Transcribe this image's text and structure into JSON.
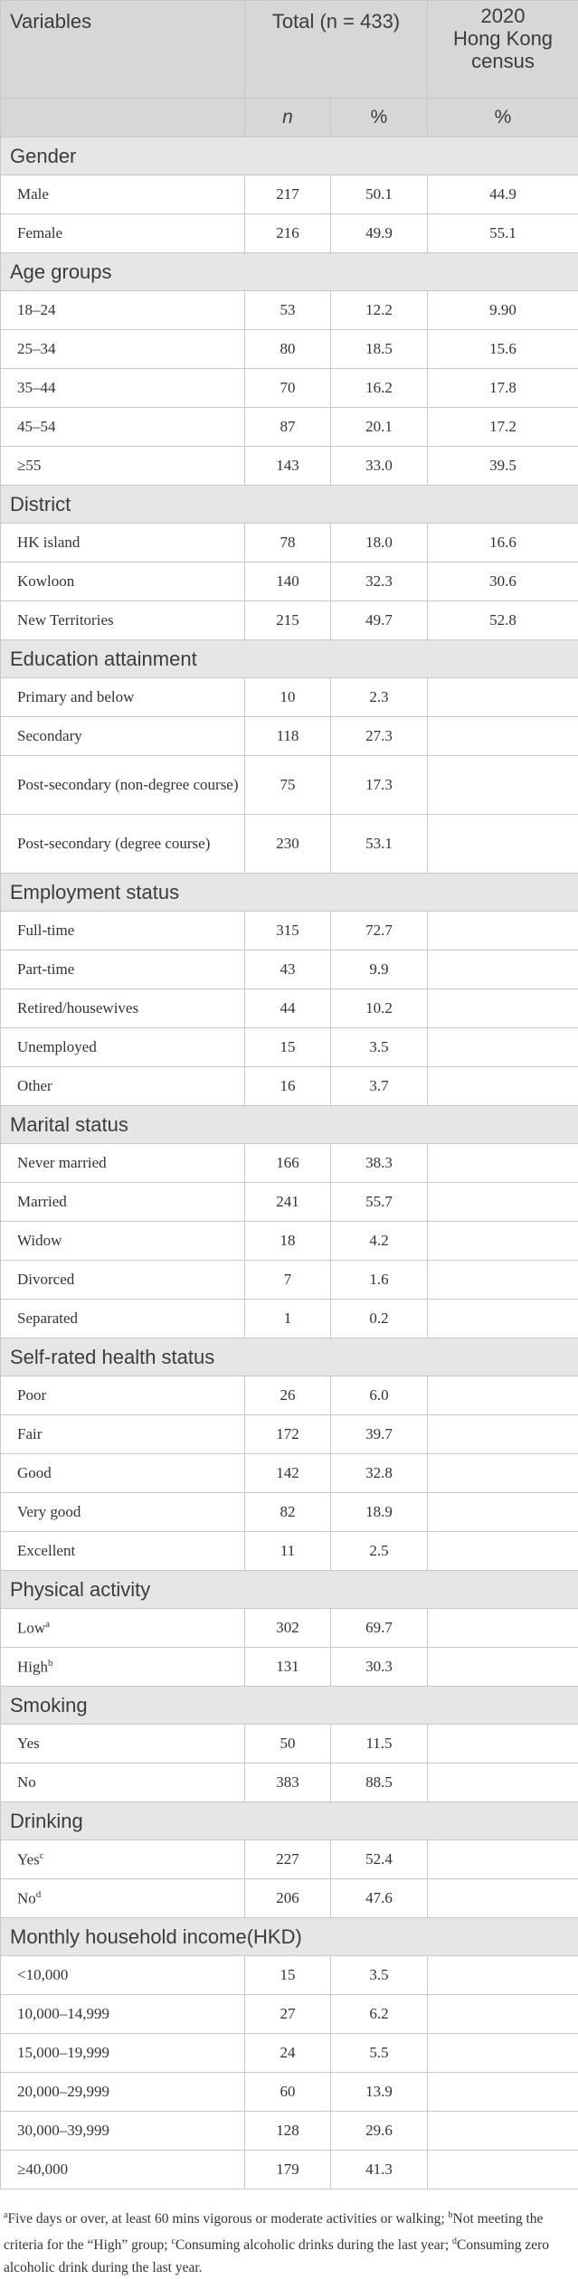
{
  "header": {
    "variables": "Variables",
    "total": "Total (n = 433)",
    "census_line1": "2020",
    "census_line2": "Hong Kong",
    "census_line3": "census",
    "n": "n",
    "pct": "%",
    "census_pct": "%"
  },
  "sections": [
    {
      "title": "Gender",
      "rows": [
        {
          "label": "Male",
          "n": "217",
          "pct": "50.1",
          "census": "44.9"
        },
        {
          "label": "Female",
          "n": "216",
          "pct": "49.9",
          "census": "55.1"
        }
      ]
    },
    {
      "title": "Age groups",
      "rows": [
        {
          "label": "18–24",
          "n": "53",
          "pct": "12.2",
          "census": "9.90"
        },
        {
          "label": "25–34",
          "n": "80",
          "pct": "18.5",
          "census": "15.6"
        },
        {
          "label": "35–44",
          "n": "70",
          "pct": "16.2",
          "census": "17.8"
        },
        {
          "label": "45–54",
          "n": "87",
          "pct": "20.1",
          "census": "17.2"
        },
        {
          "label": "≥55",
          "n": "143",
          "pct": "33.0",
          "census": "39.5"
        }
      ]
    },
    {
      "title": "District",
      "rows": [
        {
          "label": "HK island",
          "n": "78",
          "pct": "18.0",
          "census": "16.6"
        },
        {
          "label": "Kowloon",
          "n": "140",
          "pct": "32.3",
          "census": "30.6"
        },
        {
          "label": "New Territories",
          "n": "215",
          "pct": "49.7",
          "census": "52.8"
        }
      ]
    },
    {
      "title": "Education attainment",
      "rows": [
        {
          "label": "Primary and below",
          "n": "10",
          "pct": "2.3",
          "census": ""
        },
        {
          "label": "Secondary",
          "n": "118",
          "pct": "27.3",
          "census": ""
        },
        {
          "label": "Post-secondary (non-degree course)",
          "n": "75",
          "pct": "17.3",
          "census": "",
          "tall": true
        },
        {
          "label": "Post-secondary (degree course)",
          "n": "230",
          "pct": "53.1",
          "census": "",
          "tall": true
        }
      ]
    },
    {
      "title": "Employment status",
      "rows": [
        {
          "label": "Full-time",
          "n": "315",
          "pct": "72.7",
          "census": ""
        },
        {
          "label": "Part-time",
          "n": "43",
          "pct": "9.9",
          "census": ""
        },
        {
          "label": "Retired/housewives",
          "n": "44",
          "pct": "10.2",
          "census": ""
        },
        {
          "label": "Unemployed",
          "n": "15",
          "pct": "3.5",
          "census": ""
        },
        {
          "label": "Other",
          "n": "16",
          "pct": "3.7",
          "census": ""
        }
      ]
    },
    {
      "title": "Marital status",
      "rows": [
        {
          "label": "Never married",
          "n": "166",
          "pct": "38.3",
          "census": ""
        },
        {
          "label": "Married",
          "n": "241",
          "pct": "55.7",
          "census": ""
        },
        {
          "label": "Widow",
          "n": "18",
          "pct": "4.2",
          "census": ""
        },
        {
          "label": "Divorced",
          "n": "7",
          "pct": "1.6",
          "census": ""
        },
        {
          "label": "Separated",
          "n": "1",
          "pct": "0.2",
          "census": ""
        }
      ]
    },
    {
      "title": "Self-rated health status",
      "rows": [
        {
          "label": "Poor",
          "n": "26",
          "pct": "6.0",
          "census": ""
        },
        {
          "label": "Fair",
          "n": "172",
          "pct": "39.7",
          "census": ""
        },
        {
          "label": "Good",
          "n": "142",
          "pct": "32.8",
          "census": ""
        },
        {
          "label": "Very good",
          "n": "82",
          "pct": "18.9",
          "census": ""
        },
        {
          "label": "Excellent",
          "n": "11",
          "pct": "2.5",
          "census": ""
        }
      ]
    },
    {
      "title": "Physical activity",
      "rows": [
        {
          "label": "Low",
          "sup": "a",
          "n": "302",
          "pct": "69.7",
          "census": ""
        },
        {
          "label": "High",
          "sup": "b",
          "n": "131",
          "pct": "30.3",
          "census": ""
        }
      ]
    },
    {
      "title": "Smoking",
      "rows": [
        {
          "label": "Yes",
          "n": "50",
          "pct": "11.5",
          "census": ""
        },
        {
          "label": "No",
          "n": "383",
          "pct": "88.5",
          "census": ""
        }
      ]
    },
    {
      "title": "Drinking",
      "rows": [
        {
          "label": "Yes",
          "sup": "c",
          "n": "227",
          "pct": "52.4",
          "census": ""
        },
        {
          "label": "No",
          "sup": "d",
          "n": "206",
          "pct": "47.6",
          "census": ""
        }
      ]
    },
    {
      "title": "Monthly household income(HKD)",
      "rows": [
        {
          "label": "<10,000",
          "n": "15",
          "pct": "3.5",
          "census": ""
        },
        {
          "label": "10,000–14,999",
          "n": "27",
          "pct": "6.2",
          "census": ""
        },
        {
          "label": "15,000–19,999",
          "n": "24",
          "pct": "5.5",
          "census": ""
        },
        {
          "label": "20,000–29,999",
          "n": "60",
          "pct": "13.9",
          "census": ""
        },
        {
          "label": "30,000–39,999",
          "n": "128",
          "pct": "29.6",
          "census": ""
        },
        {
          "label": "≥40,000",
          "n": "179",
          "pct": "41.3",
          "census": ""
        }
      ]
    }
  ],
  "footnotes": [
    {
      "sup": "a",
      "text": "Five days or over, at least 60 mins vigorous or moderate activities or walking; "
    },
    {
      "sup": "b",
      "text": "Not meeting the criteria for the “High” group; "
    },
    {
      "sup": "c",
      "text": "Consuming alcoholic drinks during the last year; "
    },
    {
      "sup": "d",
      "text": "Consuming zero alcoholic drink during the last year."
    }
  ]
}
